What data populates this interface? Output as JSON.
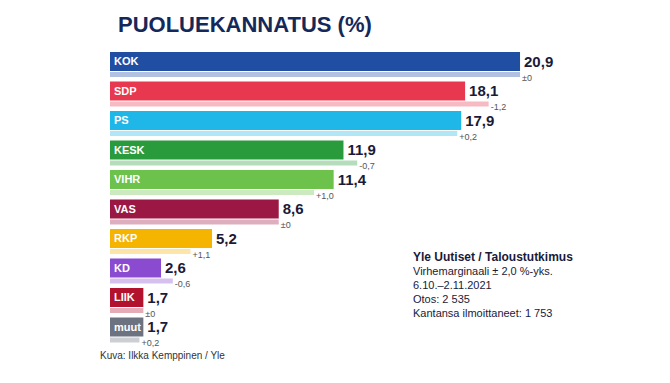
{
  "chart_data": {
    "type": "bar",
    "orientation": "horizontal",
    "title": "PUOLUEKANNATUS (%)",
    "categories": [
      "KOK",
      "SDP",
      "PS",
      "KESK",
      "VIHR",
      "VAS",
      "RKP",
      "KD",
      "LIIK",
      "muut"
    ],
    "values": [
      20.9,
      18.1,
      17.9,
      11.9,
      11.4,
      8.6,
      5.2,
      2.6,
      1.7,
      1.7
    ],
    "value_labels": [
      "20,9",
      "18,1",
      "17,9",
      "11,9",
      "11,4",
      "8,6",
      "5,2",
      "2,6",
      "1,7",
      "1,7"
    ],
    "colors": [
      "#1f4ea3",
      "#e8384f",
      "#1fb6e8",
      "#2a9b3c",
      "#6cc24a",
      "#9b1845",
      "#f5b400",
      "#8a4bd1",
      "#b3122e",
      "#6d7280"
    ],
    "previous_values": [
      20.9,
      19.3,
      17.7,
      12.6,
      10.4,
      8.6,
      4.1,
      3.2,
      1.7,
      1.5
    ],
    "changes": [
      0,
      -1.2,
      0.2,
      -0.7,
      1.0,
      0,
      1.1,
      -0.6,
      0,
      0.2
    ],
    "change_labels": [
      "±0",
      "-1,2",
      "+0,2",
      "-0,7",
      "+1,0",
      "±0",
      "+1,1",
      "-0,6",
      "±0",
      "+0,2"
    ],
    "xlim": [
      0,
      21
    ],
    "tick_labels": false,
    "data_labels": true,
    "grid": false,
    "source": "Yle Uutiset / Taloustutkimus",
    "notes": [
      "Virhemarginaali ± 2,0 %-yks.",
      "6.10.–2.11.2021",
      "Otos: 2 535",
      "Kantansa ilmoittaneet: 1 753"
    ],
    "caption": "Kuva: Ilkka Kemppinen / Yle"
  }
}
